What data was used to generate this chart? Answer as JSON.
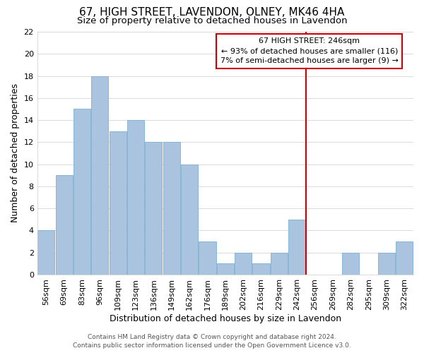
{
  "title": "67, HIGH STREET, LAVENDON, OLNEY, MK46 4HA",
  "subtitle": "Size of property relative to detached houses in Lavendon",
  "xlabel": "Distribution of detached houses by size in Lavendon",
  "ylabel": "Number of detached properties",
  "bar_labels": [
    "56sqm",
    "69sqm",
    "83sqm",
    "96sqm",
    "109sqm",
    "123sqm",
    "136sqm",
    "149sqm",
    "162sqm",
    "176sqm",
    "189sqm",
    "202sqm",
    "216sqm",
    "229sqm",
    "242sqm",
    "256sqm",
    "269sqm",
    "282sqm",
    "295sqm",
    "309sqm",
    "322sqm"
  ],
  "bar_values": [
    4,
    9,
    15,
    18,
    13,
    14,
    12,
    12,
    10,
    3,
    1,
    2,
    1,
    2,
    5,
    0,
    0,
    2,
    0,
    2,
    3
  ],
  "bar_color": "#aac4e0",
  "bar_edge_color": "#7bafd4",
  "red_line_x": 14.5,
  "red_line_color": "#cc0000",
  "annotation_text_line1": "67 HIGH STREET: 246sqm",
  "annotation_text_line2": "← 93% of detached houses are smaller (116)",
  "annotation_text_line3": "7% of semi-detached houses are larger (9) →",
  "annotation_box_edgecolor": "#cc0000",
  "annotation_box_facecolor": "#ffffff",
  "ylim": [
    0,
    22
  ],
  "yticks": [
    0,
    2,
    4,
    6,
    8,
    10,
    12,
    14,
    16,
    18,
    20,
    22
  ],
  "background_color": "#ffffff",
  "plot_bg_color": "#ffffff",
  "grid_color": "#cccccc",
  "footer_line1": "Contains HM Land Registry data © Crown copyright and database right 2024.",
  "footer_line2": "Contains public sector information licensed under the Open Government Licence v3.0.",
  "title_fontsize": 11,
  "subtitle_fontsize": 9.5,
  "xlabel_fontsize": 9,
  "ylabel_fontsize": 9,
  "tick_fontsize": 8,
  "footer_fontsize": 6.5,
  "annot_fontsize": 8
}
